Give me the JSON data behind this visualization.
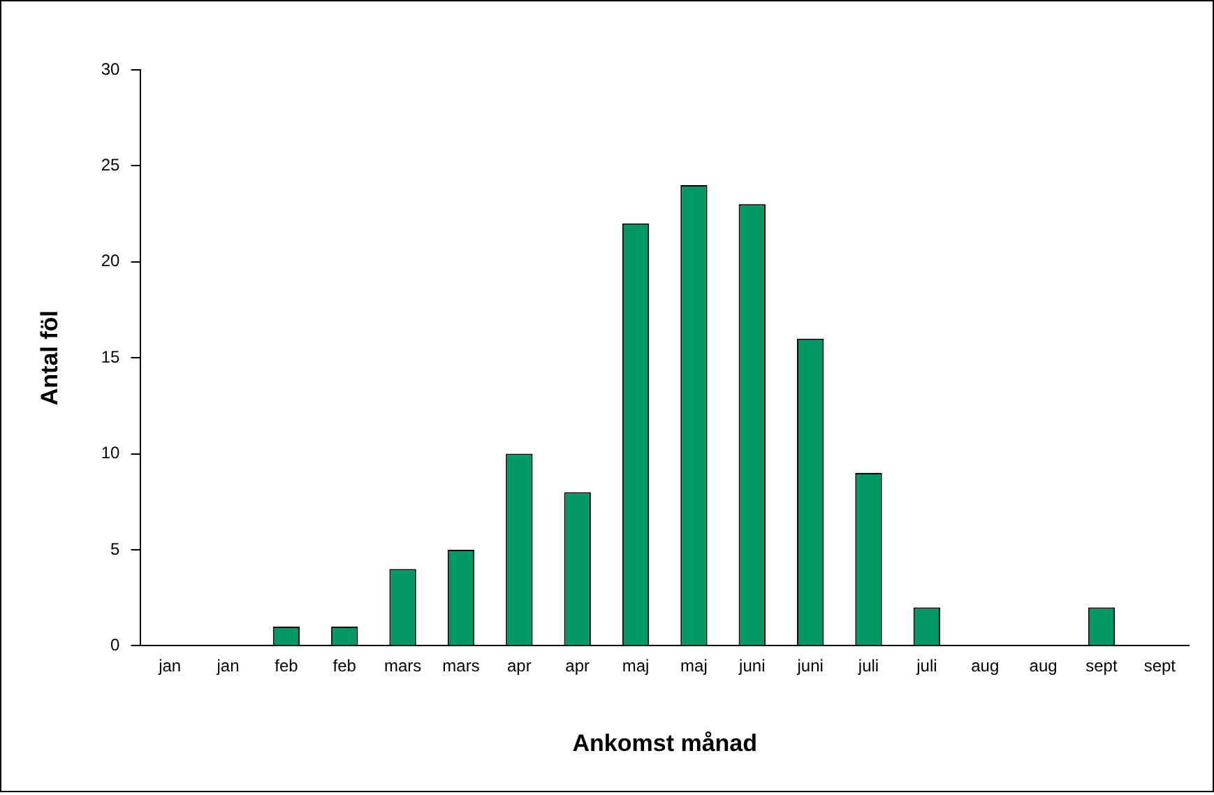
{
  "chart_data": {
    "type": "bar",
    "xlabel": "Ankomst månad",
    "ylabel": "Antal föl",
    "categories": [
      "jan",
      "jan",
      "feb",
      "feb",
      "mars",
      "mars",
      "apr",
      "apr",
      "maj",
      "maj",
      "juni",
      "juni",
      "juli",
      "juli",
      "aug",
      "aug",
      "sept",
      "sept"
    ],
    "values": [
      0,
      0,
      1,
      1,
      4,
      5,
      10,
      8,
      22,
      24,
      23,
      16,
      9,
      2,
      0,
      0,
      2,
      0
    ],
    "color": "#009966",
    "ylim": [
      0,
      30
    ],
    "yticks": [
      0,
      5,
      10,
      15,
      20,
      25,
      30
    ],
    "grid": false,
    "legend": false
  }
}
